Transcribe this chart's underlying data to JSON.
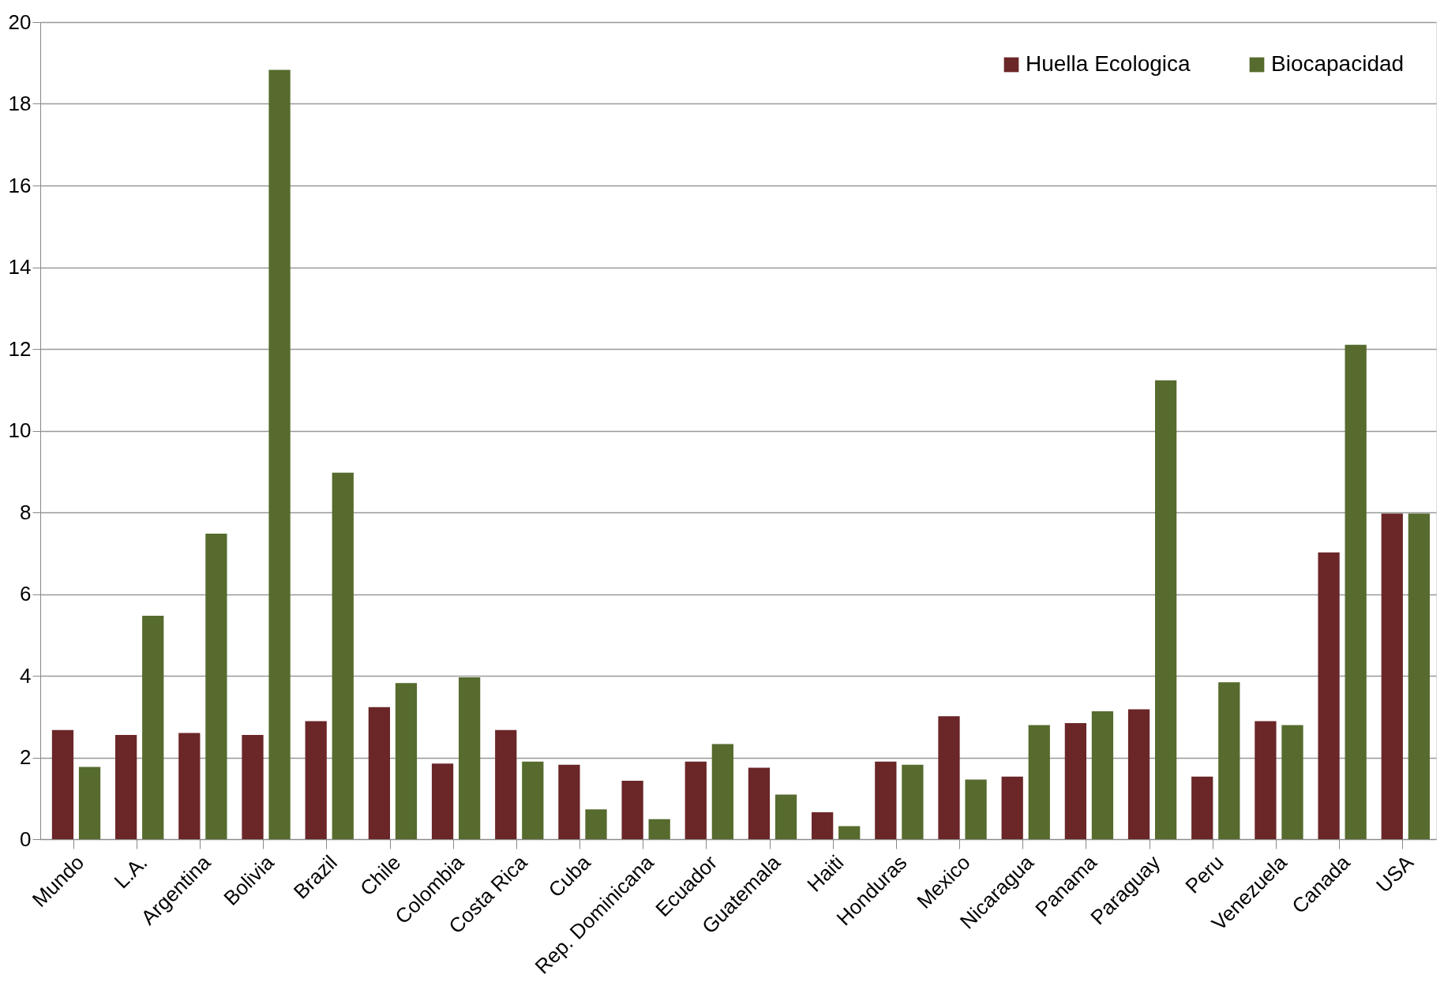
{
  "chart_data": {
    "type": "bar",
    "categories": [
      "Mundo",
      "L.A.",
      "Argentina",
      "Bolivia",
      "Brazil",
      "Chile",
      "Colombia",
      "Costa Rica",
      "Cuba",
      "Rep. Dominicana",
      "Ecuador",
      "Guatemala",
      "Haiti",
      "Honduras",
      "Mexico",
      "Nicaragua",
      "Panama",
      "Paraguay",
      "Peru",
      "Venezuela",
      "Canada",
      "USA"
    ],
    "series": [
      {
        "name": "Huella Ecologica",
        "color": "#6b2628",
        "values": [
          2.67,
          2.55,
          2.6,
          2.55,
          2.89,
          3.23,
          1.85,
          2.67,
          1.82,
          1.43,
          1.9,
          1.75,
          0.66,
          1.9,
          3.01,
          1.53,
          2.84,
          3.18,
          1.53,
          2.89,
          7.02,
          7.97
        ]
      },
      {
        "name": "Biocapacidad",
        "color": "#566b2d",
        "values": [
          1.77,
          5.47,
          7.48,
          18.83,
          8.97,
          3.82,
          3.96,
          1.9,
          0.73,
          0.49,
          2.33,
          1.09,
          0.32,
          1.82,
          1.46,
          2.79,
          3.13,
          11.23,
          3.84,
          2.79,
          12.1,
          7.97
        ]
      }
    ],
    "ylim": [
      0,
      20
    ],
    "yticks": [
      0,
      2,
      4,
      6,
      8,
      10,
      12,
      14,
      16,
      18,
      20
    ],
    "grid": "y",
    "legend": "top right"
  }
}
